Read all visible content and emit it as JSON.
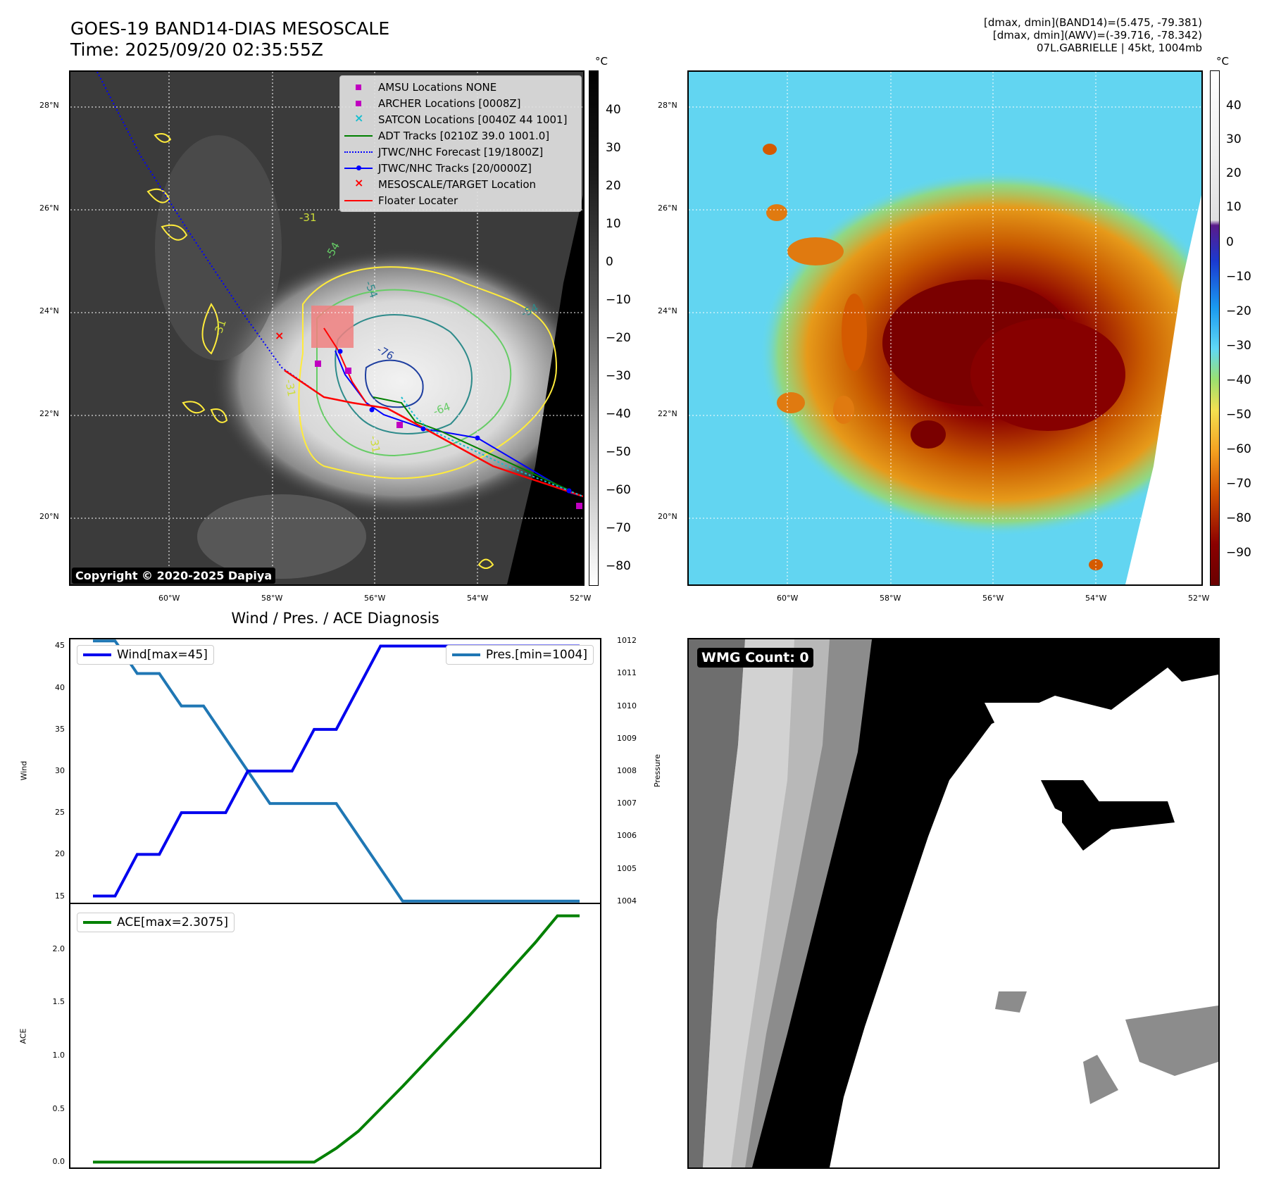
{
  "header": {
    "title_line1": "GOES-19 BAND14-DIAS MESOSCALE",
    "title_line2": "Time: 2025/09/20 02:35:55Z",
    "info_line1": "[dmax, dmin](BAND14)=(5.475, -79.381)",
    "info_line2": "[dmax, dmin](AWV)=(-39.716, -78.342)",
    "info_line3": "07L.GABRIELLE | 45kt, 1004mb"
  },
  "map_axes": {
    "lat_ticks": [
      "28°N",
      "26°N",
      "24°N",
      "22°N",
      "20°N"
    ],
    "lon_ticks": [
      "60°W",
      "58°W",
      "56°W",
      "54°W",
      "52°W"
    ]
  },
  "ir_panel": {
    "colorbar_unit": "°C",
    "colorbar_ticks": [
      "40",
      "30",
      "20",
      "10",
      "0",
      "−10",
      "−20",
      "−30",
      "−40",
      "−50",
      "−60",
      "−70",
      "−80"
    ],
    "copyright": "Copyright © 2020-2025 Dapiya",
    "contour_labels": [
      "-31",
      "-31",
      "-54",
      "-54",
      "-54",
      "-76",
      "-64",
      "-31",
      "-31"
    ],
    "legend": [
      {
        "label": "AMSU Locations NONE",
        "marker": "square",
        "color": "#c000c0"
      },
      {
        "label": "ARCHER Locations [0008Z]",
        "marker": "square",
        "color": "#c000c0"
      },
      {
        "label": "SATCON Locations [0040Z 44 1001]",
        "marker": "x",
        "color": "#17becf"
      },
      {
        "label": "ADT Tracks [0210Z 39.0 1001.0]",
        "marker": "line",
        "color": "#008000"
      },
      {
        "label": "JTWC/NHC Forecast [19/1800Z]",
        "marker": "dotted",
        "color": "#0000ff"
      },
      {
        "label": "JTWC/NHC Tracks [20/0000Z]",
        "marker": "line-dot",
        "color": "#0000ff"
      },
      {
        "label": "MESOSCALE/TARGET Location",
        "marker": "x",
        "color": "#ff0000"
      },
      {
        "label": "Floater Locater",
        "marker": "line",
        "color": "#ff0000"
      }
    ]
  },
  "wv_panel": {
    "colorbar_unit": "°C",
    "colorbar_ticks": [
      "40",
      "30",
      "20",
      "10",
      "0",
      "−10",
      "−20",
      "−30",
      "−40",
      "−50",
      "−60",
      "−70",
      "−80",
      "−90"
    ]
  },
  "diagnosis": {
    "title": "Wind / Pres. / ACE Diagnosis",
    "wind_ylabel": "Wind",
    "pres_ylabel": "Pressure",
    "ace_ylabel": "ACE",
    "wind_legend": "Wind[max=45]",
    "pres_legend": "Pres.[min=1004]",
    "ace_legend": "ACE[max=2.3075]",
    "wind_ticks": [
      "45",
      "40",
      "35",
      "30",
      "25",
      "20",
      "15"
    ],
    "pres_ticks": [
      "1012",
      "1011",
      "1010",
      "1009",
      "1008",
      "1007",
      "1006",
      "1005",
      "1004"
    ],
    "ace_ticks": [
      "2.0",
      "1.5",
      "1.0",
      "0.5",
      "0.0"
    ]
  },
  "wmg_panel": {
    "label": "WMG Count: 0"
  },
  "chart_data": [
    {
      "type": "line",
      "title": "",
      "series": [
        {
          "name": "Wind[max=45]",
          "color": "#0000ee",
          "x": [
            0,
            1,
            2,
            3,
            4,
            5,
            6,
            7,
            8,
            9,
            10,
            11,
            12,
            13,
            14,
            15,
            16,
            17,
            18,
            19,
            20,
            21,
            22
          ],
          "values": [
            15,
            15,
            20,
            20,
            25,
            25,
            25,
            30,
            30,
            30,
            35,
            35,
            40,
            45,
            45,
            45,
            45,
            45,
            45,
            45,
            45,
            45,
            45
          ]
        },
        {
          "name": "Pres.[min=1004]",
          "color": "#1f77b4",
          "x": [
            0,
            1,
            2,
            3,
            4,
            5,
            6,
            7,
            8,
            9,
            10,
            11,
            12,
            13,
            14,
            15,
            16,
            17,
            18,
            19,
            20,
            21,
            22
          ],
          "values": [
            1012,
            1012,
            1011,
            1011,
            1010,
            1010,
            1009,
            1008,
            1007,
            1007,
            1007,
            1007,
            1006,
            1005,
            1004,
            1004,
            1004,
            1004,
            1004,
            1004,
            1004,
            1004,
            1004
          ]
        }
      ],
      "ylim_wind": [
        14.2,
        45.8
      ],
      "ylim_pres": [
        1003.95,
        1012.05
      ]
    },
    {
      "type": "line",
      "title": "",
      "series": [
        {
          "name": "ACE[max=2.3075]",
          "color": "#008000",
          "x": [
            0,
            1,
            2,
            3,
            4,
            5,
            6,
            7,
            8,
            9,
            10,
            11,
            12,
            13,
            14,
            15,
            16,
            17,
            18,
            19,
            20,
            21,
            22
          ],
          "values": [
            0,
            0,
            0,
            0,
            0,
            0,
            0,
            0,
            0,
            0,
            0,
            0.13,
            0.29,
            0.5,
            0.71,
            0.93,
            1.15,
            1.37,
            1.6,
            1.83,
            2.06,
            2.31,
            2.31
          ]
        }
      ],
      "ylim": [
        -0.05,
        2.42
      ]
    }
  ]
}
